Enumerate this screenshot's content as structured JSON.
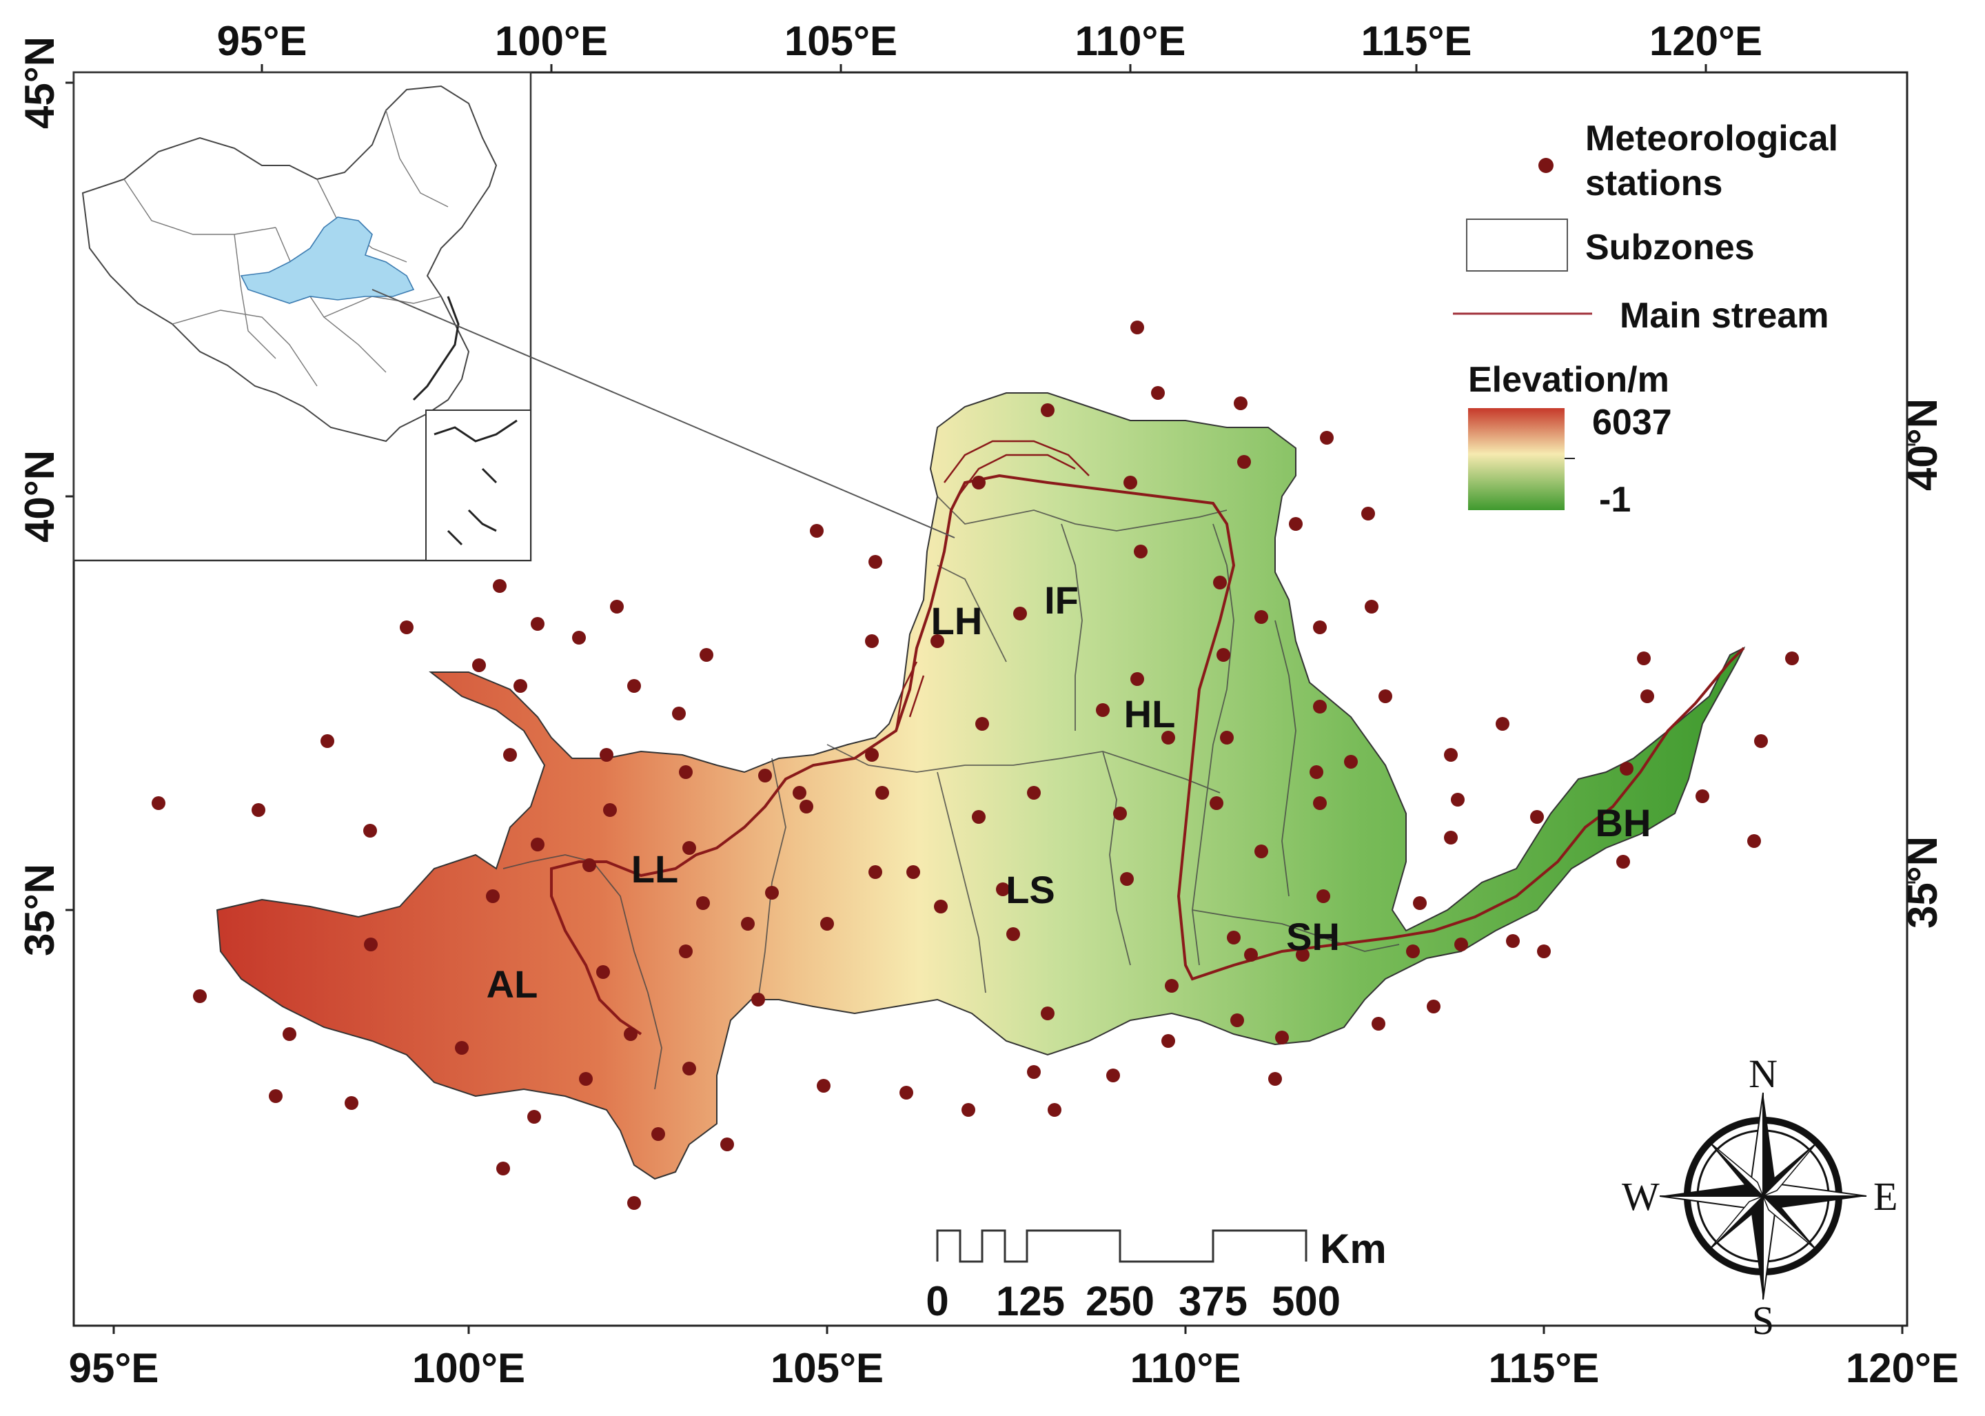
{
  "axes": {
    "top_lon": [
      "95°E",
      "100°E",
      "105°E",
      "110°E",
      "115°E",
      "120°E"
    ],
    "bottom_lon": [
      "95°E",
      "100°E",
      "105°E",
      "110°E",
      "115°E",
      "120°E"
    ],
    "left_lat": [
      "45°N",
      "40°N",
      "35°N"
    ],
    "right_lat": [
      "40°N",
      "35°N"
    ]
  },
  "zones": [
    "LH",
    "IF",
    "HL",
    "LL",
    "LS",
    "AL",
    "SH",
    "BH"
  ],
  "legend": {
    "stations": "Meteorological stations",
    "stations_line1": "Meteorological",
    "stations_line2": "stations",
    "subzones": "Subzones",
    "stream": "Main stream",
    "elev_title": "Elevation/m",
    "elev_max": "6037",
    "elev_min": "-1"
  },
  "scalebar": {
    "unit": "Km",
    "labels": [
      "0",
      "125",
      "250",
      "375",
      "500"
    ]
  },
  "compass": {
    "n": "N",
    "s": "S",
    "e": "E",
    "w": "W"
  },
  "colors": {
    "high": "#c6392a",
    "mid": "#f5f0b8",
    "low": "#3f9a2e",
    "station": "#7a1414",
    "stream": "#8a1a1a",
    "inset_basin": "#a8d8f0"
  }
}
